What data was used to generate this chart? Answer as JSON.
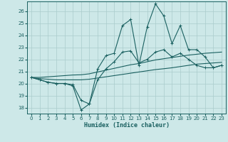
{
  "xlabel": "Humidex (Indice chaleur)",
  "bg_color": "#cde8e8",
  "grid_color": "#aacccc",
  "line_color": "#1a6060",
  "xlim": [
    -0.5,
    23.5
  ],
  "ylim": [
    17.5,
    26.8
  ],
  "xticks": [
    0,
    1,
    2,
    3,
    4,
    5,
    6,
    7,
    8,
    9,
    10,
    11,
    12,
    13,
    14,
    15,
    16,
    17,
    18,
    19,
    20,
    21,
    22,
    23
  ],
  "yticks": [
    18,
    19,
    20,
    21,
    22,
    23,
    24,
    25,
    26
  ],
  "series_main": [
    20.5,
    20.3,
    20.1,
    20.0,
    20.0,
    19.8,
    17.8,
    18.3,
    21.2,
    22.3,
    22.5,
    24.8,
    25.3,
    21.5,
    24.7,
    26.6,
    25.6,
    23.3,
    24.8,
    22.8,
    22.8,
    22.2,
    21.3,
    21.5
  ],
  "series_avg": [
    20.5,
    20.3,
    20.1,
    20.0,
    20.0,
    19.9,
    18.6,
    18.3,
    20.3,
    21.2,
    21.8,
    22.6,
    22.7,
    21.7,
    22.0,
    22.6,
    22.8,
    22.2,
    22.5,
    22.0,
    21.5,
    21.3,
    21.3,
    21.5
  ],
  "trend_low": [
    20.5,
    20.4,
    20.35,
    20.3,
    20.3,
    20.3,
    20.3,
    20.35,
    20.45,
    20.55,
    20.65,
    20.75,
    20.85,
    20.95,
    21.05,
    21.15,
    21.22,
    21.3,
    21.4,
    21.5,
    21.6,
    21.65,
    21.7,
    21.75
  ],
  "trend_high": [
    20.5,
    20.5,
    20.55,
    20.6,
    20.65,
    20.7,
    20.72,
    20.8,
    20.95,
    21.1,
    21.25,
    21.4,
    21.55,
    21.65,
    21.8,
    21.95,
    22.05,
    22.15,
    22.25,
    22.35,
    22.42,
    22.5,
    22.55,
    22.6
  ]
}
